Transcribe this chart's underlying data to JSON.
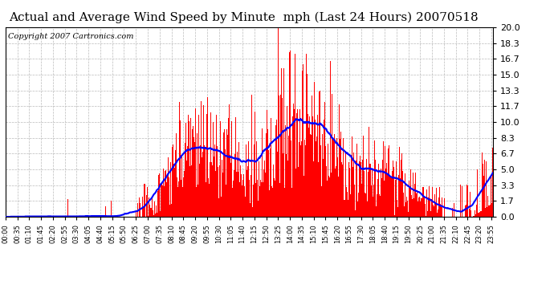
{
  "title": "Actual and Average Wind Speed by Minute  mph (Last 24 Hours) 20070518",
  "copyright": "Copyright 2007 Cartronics.com",
  "yticks": [
    0.0,
    1.7,
    3.3,
    5.0,
    6.7,
    8.3,
    10.0,
    11.7,
    13.3,
    15.0,
    16.7,
    18.3,
    20.0
  ],
  "ymax": 20.0,
  "ymin": 0.0,
  "bar_color": "#ff0000",
  "line_color": "#0000ff",
  "bg_color": "#ffffff",
  "grid_color": "#bbbbbb",
  "title_fontsize": 11,
  "copyright_fontsize": 7,
  "xtick_fontsize": 6,
  "ytick_fontsize": 8
}
